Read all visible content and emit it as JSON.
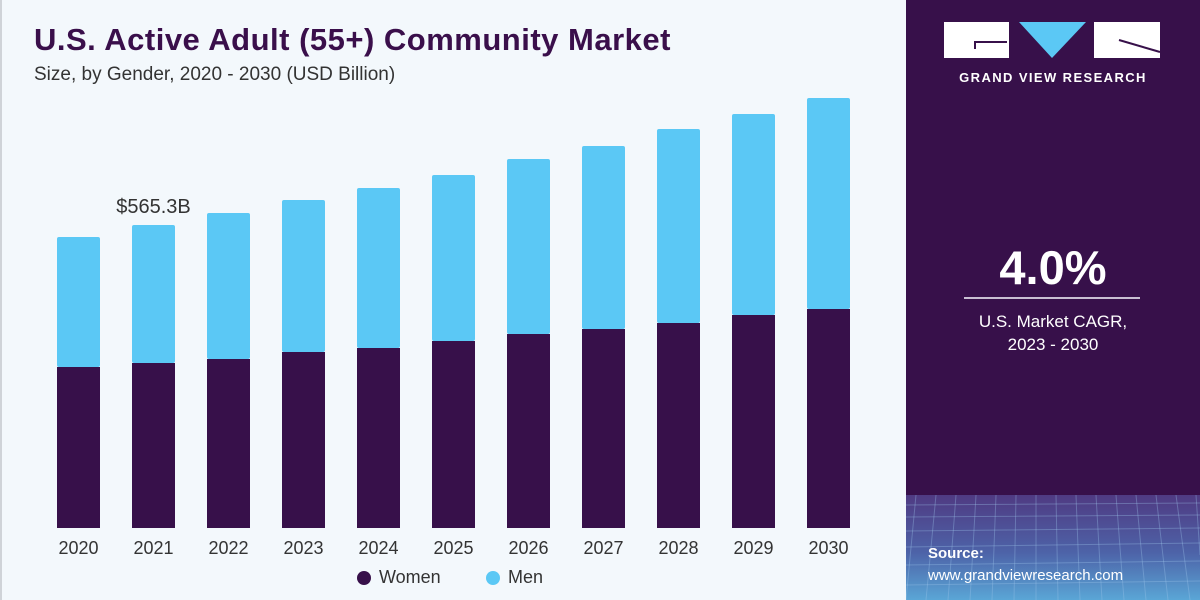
{
  "header": {
    "title": "U.S. Active Adult (55+) Community Market",
    "subtitle": "Size, by Gender, 2020 - 2030 (USD Billion)"
  },
  "brand": {
    "name": "GRAND VIEW RESEARCH",
    "cagr_value": "4.0%",
    "cagr_label_line1": "U.S. Market CAGR,",
    "cagr_label_line2": "2023 - 2030",
    "source_label": "Source:",
    "source_url": "www.grandviewresearch.com"
  },
  "colors": {
    "women": "#37104a",
    "men": "#5bc8f5",
    "panel": "#37104a"
  },
  "chart_data": {
    "type": "bar",
    "stacked": true,
    "title": "U.S. Active Adult (55+) Community Market",
    "subtitle": "Size, by Gender, 2020 - 2030 (USD Billion)",
    "xlabel": "",
    "ylabel": "",
    "categories": [
      "2020",
      "2021",
      "2022",
      "2023",
      "2024",
      "2025",
      "2026",
      "2027",
      "2028",
      "2029",
      "2030"
    ],
    "series": [
      {
        "name": "Women",
        "values": [
          300.4,
          307.8,
          315.3,
          328.4,
          335.8,
          348.9,
          361.9,
          371.3,
          382.5,
          397.4,
          408.6
        ]
      },
      {
        "name": "Men",
        "values": [
          242.6,
          257.5,
          272.4,
          283.6,
          298.5,
          309.7,
          326.5,
          341.4,
          361.9,
          375.0,
          393.6
        ]
      }
    ],
    "annotations": [
      {
        "category": "2021",
        "text": "$565.3B"
      }
    ],
    "ylim": [
      0,
      810
    ],
    "grid": false,
    "legend": "bottom"
  }
}
